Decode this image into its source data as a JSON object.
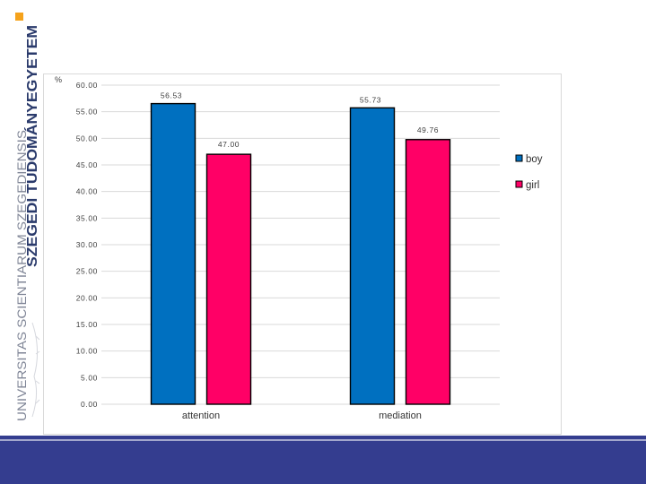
{
  "branding": {
    "university_name": "SZEGEDI TUDOMÁNYEGYETEM",
    "latin_name": "UNIVERSITAS SCIENTIARUM SZEGEDIENSIS",
    "accent_color": "#f5a21b",
    "text_color": "#2a3a6b"
  },
  "chart_data": {
    "type": "bar",
    "title": "",
    "xlabel": "",
    "ylabel": "%",
    "ylim": [
      0,
      60
    ],
    "ytick_step": 5,
    "ytick_labels": [
      "0.00",
      "5.00",
      "10.00",
      "15.00",
      "20.00",
      "25.00",
      "30.00",
      "35.00",
      "40.00",
      "45.00",
      "50.00",
      "55.00",
      "60.00"
    ],
    "categories": [
      "attention",
      "mediation"
    ],
    "series": [
      {
        "name": "boy",
        "values": [
          56.53,
          55.73
        ],
        "labels": [
          "56.53",
          "55.73"
        ],
        "color": "#0070c0"
      },
      {
        "name": "girl",
        "values": [
          47.0,
          49.76
        ],
        "labels": [
          "47.00",
          "49.76"
        ],
        "color": "#ff0066"
      }
    ],
    "grid": true,
    "legend_position": "right"
  },
  "footer": {
    "band_color": "#343d8f"
  }
}
